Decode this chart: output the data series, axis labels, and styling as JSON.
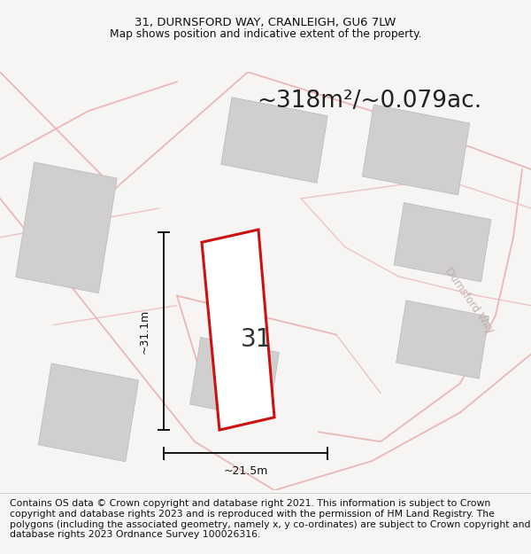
{
  "title_line1": "31, DURNSFORD WAY, CRANLEIGH, GU6 7LW",
  "title_line2": "Map shows position and indicative extent of the property.",
  "area_text": "~318m²/~0.079ac.",
  "dimension_width": "~21.5m",
  "dimension_height": "~31.1m",
  "plot_number": "31",
  "footer_text": "Contains OS data © Crown copyright and database right 2021. This information is subject to Crown copyright and database rights 2023 and is reproduced with the permission of HM Land Registry. The polygons (including the associated geometry, namely x, y co-ordinates) are subject to Crown copyright and database rights 2023 Ordnance Survey 100026316.",
  "bg_color": "#f7f4f4",
  "map_bg_color": "#f5f0f0",
  "road_color": "#e8b8b8",
  "building_color": "#d0cece",
  "plot_outline_color": "#cc1111",
  "plot_fill_color": "#ffffff",
  "dimension_line_color": "#111111",
  "title_fontsize": 9.5,
  "subtitle_fontsize": 8.8,
  "area_fontsize": 19,
  "plot_number_fontsize": 20,
  "footer_fontsize": 7.8,
  "durnsford_color": "#c0b0b0"
}
